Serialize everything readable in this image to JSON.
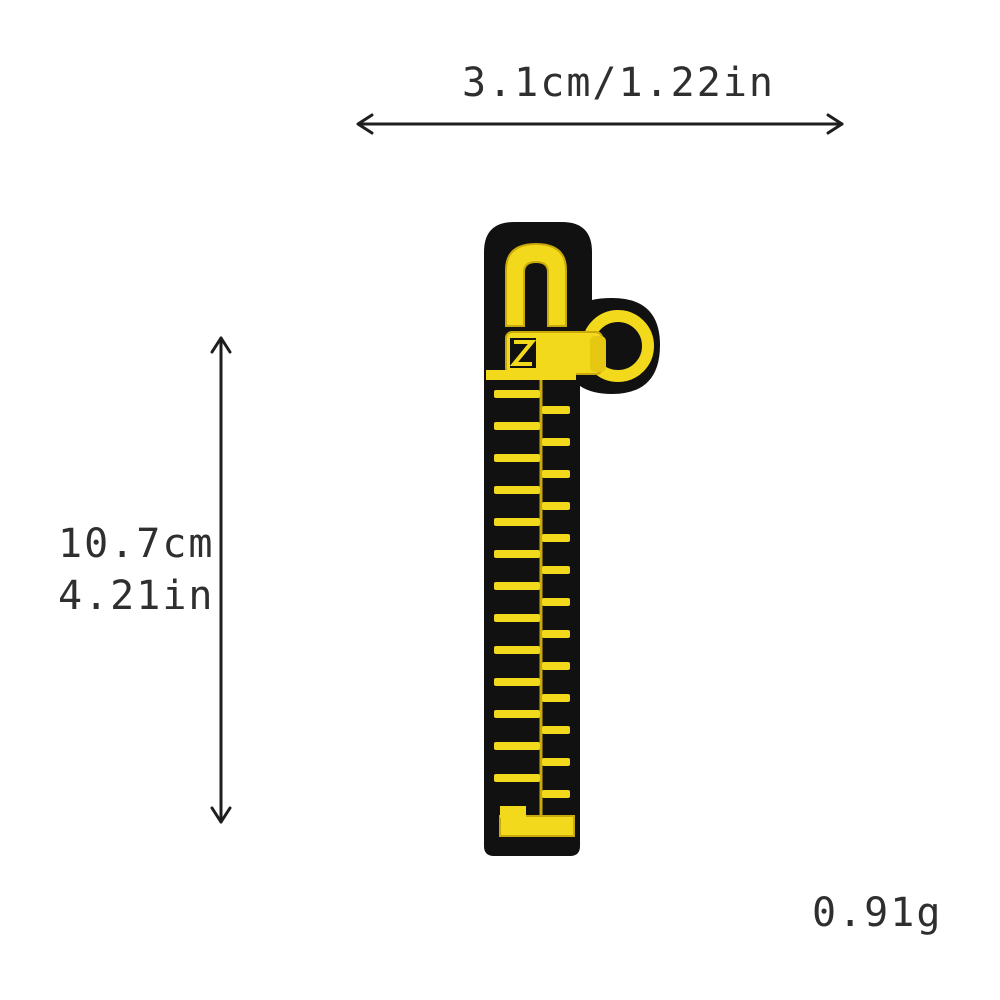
{
  "dimensions": {
    "width_label": "3.1cm/1.22in",
    "height_label_cm": "10.7cm",
    "height_label_in": "4.21in",
    "weight_label": "0.91g"
  },
  "product": {
    "icon": "zipper-patch",
    "colors": {
      "fabric": "#111111",
      "thread": "#f2d91c",
      "thread_shadow": "#c9a90b",
      "arrow": "#1e1e1e"
    }
  }
}
